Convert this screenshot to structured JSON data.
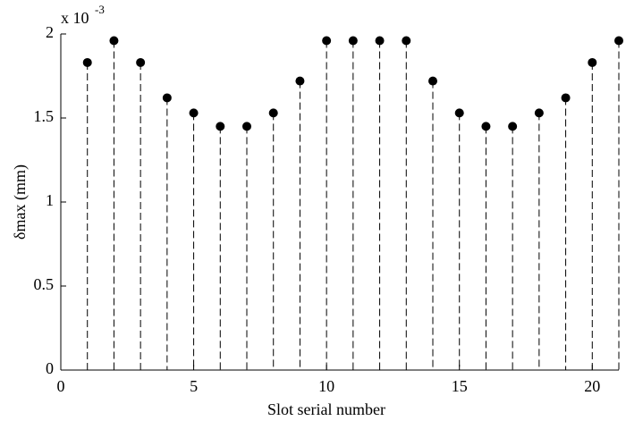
{
  "chart_data": {
    "type": "stem",
    "xlabel": "Slot serial number",
    "ylabel": "δmax (mm)",
    "axis_multiplier": {
      "base": "x 10",
      "exponent": "-3"
    },
    "x": [
      1,
      2,
      3,
      4,
      5,
      6,
      7,
      8,
      9,
      10,
      11,
      12,
      13,
      14,
      15,
      16,
      17,
      18,
      19,
      20,
      21
    ],
    "values": [
      1.83,
      1.96,
      1.83,
      1.62,
      1.53,
      1.45,
      1.45,
      1.53,
      1.72,
      1.96,
      1.96,
      1.96,
      1.96,
      1.72,
      1.53,
      1.45,
      1.45,
      1.53,
      1.62,
      1.83,
      1.96
    ],
    "color": "#000000",
    "xlim": [
      0,
      21
    ],
    "xticks": [
      0,
      5,
      10,
      15,
      20
    ],
    "ylim": [
      0,
      2
    ],
    "yticks": [
      0,
      0.5,
      1,
      1.5,
      2
    ]
  }
}
